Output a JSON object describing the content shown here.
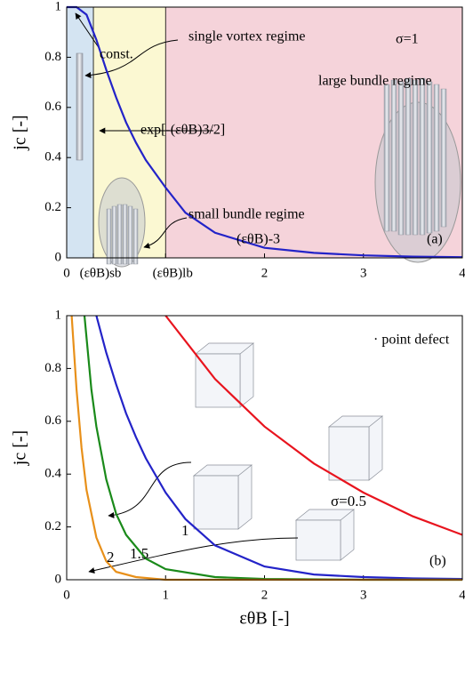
{
  "chart_data": [
    {
      "type": "line",
      "ylabel": "jc [-]",
      "xlim": [
        0,
        4
      ],
      "ylim": [
        0,
        1
      ],
      "xticks": [
        0,
        {
          "value": 0.27,
          "label": "(εθB)sb"
        },
        {
          "value": 1,
          "label": "(εθB)lb"
        },
        2,
        3,
        4
      ],
      "yticks": [
        0,
        0.2,
        0.4,
        0.6,
        0.8,
        1
      ],
      "regions": [
        {
          "from": 0,
          "to": 0.27,
          "color": "#d4e4f2"
        },
        {
          "from": 0.27,
          "to": 1,
          "color": "#fbf8d2"
        },
        {
          "from": 1,
          "to": 4,
          "color": "#f5d3da"
        }
      ],
      "series": [
        {
          "color": "#2323c8",
          "x": [
            0,
            0.1,
            0.2,
            0.3,
            0.4,
            0.5,
            0.6,
            0.7,
            0.8,
            1.0,
            1.2,
            1.5,
            2,
            2.5,
            3,
            3.5,
            4
          ],
          "values": [
            1,
            1,
            0.97,
            0.87,
            0.75,
            0.64,
            0.54,
            0.46,
            0.39,
            0.28,
            0.18,
            0.1,
            0.04,
            0.02,
            0.01,
            0.005,
            0.003
          ]
        }
      ],
      "annotations": [
        "const.",
        "single vortex regime",
        "exp[-(εθB)3/2]",
        "large bundle regime",
        "small bundle regime",
        "(εθB)-3",
        "σ=1",
        "(a)"
      ]
    },
    {
      "type": "line",
      "xlabel": "εθB [-]",
      "ylabel": "jc [-]",
      "xlim": [
        0,
        4
      ],
      "ylim": [
        0,
        1
      ],
      "xticks": [
        0,
        1,
        2,
        3,
        4
      ],
      "yticks": [
        0,
        0.2,
        0.4,
        0.6,
        0.8,
        1
      ],
      "series": [
        {
          "name": "σ=0.5",
          "color": "#e8141e",
          "x": [
            1,
            1.5,
            2,
            2.5,
            3,
            3.5,
            4
          ],
          "values": [
            1,
            0.76,
            0.58,
            0.44,
            0.33,
            0.24,
            0.17
          ]
        },
        {
          "name": "1",
          "color": "#2323c8",
          "x": [
            0.3,
            0.4,
            0.5,
            0.6,
            0.7,
            0.8,
            1,
            1.2,
            1.5,
            2,
            2.5,
            3,
            3.5,
            4
          ],
          "values": [
            1,
            0.86,
            0.74,
            0.63,
            0.54,
            0.46,
            0.33,
            0.23,
            0.13,
            0.05,
            0.02,
            0.01,
            0.005,
            0.003
          ]
        },
        {
          "name": "1.5",
          "color": "#1a8a1a",
          "x": [
            0.18,
            0.25,
            0.3,
            0.4,
            0.5,
            0.6,
            0.8,
            1,
            1.5,
            2,
            3,
            4
          ],
          "values": [
            1,
            0.72,
            0.58,
            0.38,
            0.25,
            0.17,
            0.08,
            0.04,
            0.01,
            0.003,
            0,
            0
          ]
        },
        {
          "name": "2",
          "color": "#e8901a",
          "x": [
            0.05,
            0.1,
            0.15,
            0.2,
            0.3,
            0.4,
            0.5,
            0.7,
            1,
            2,
            4
          ],
          "values": [
            1,
            0.72,
            0.5,
            0.34,
            0.16,
            0.07,
            0.03,
            0.01,
            0,
            0,
            0
          ]
        }
      ],
      "annotations": [
        "· point defect",
        "(b)"
      ]
    }
  ]
}
